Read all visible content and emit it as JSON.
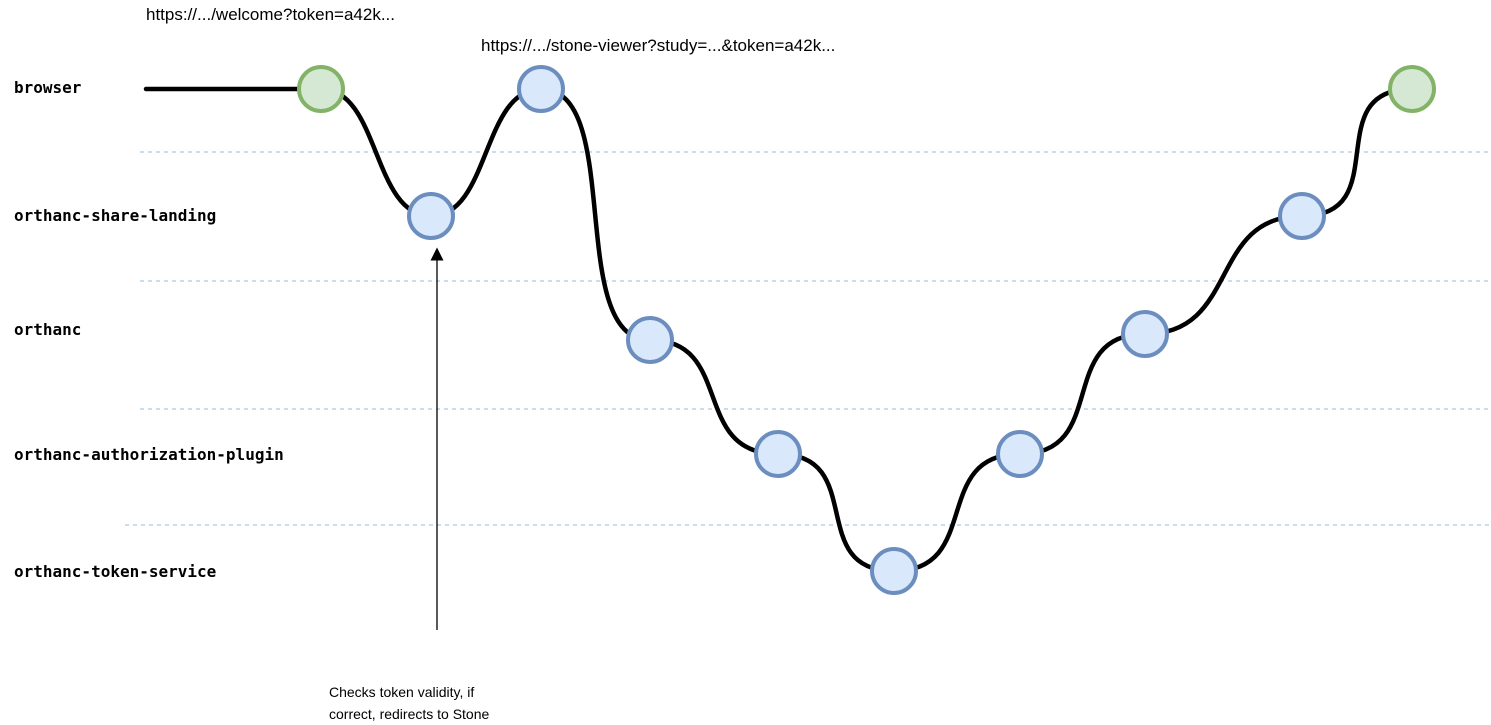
{
  "lanes": [
    {
      "label": "browser"
    },
    {
      "label": "orthanc-share-landing"
    },
    {
      "label": "orthanc"
    },
    {
      "label": "orthanc-authorization-plugin"
    },
    {
      "label": "orthanc-token-service"
    }
  ],
  "urls": {
    "welcome": "https://.../welcome?token=a42k...",
    "stone_viewer": "https://.../stone-viewer?study=...&token=a42k..."
  },
  "note": {
    "line1": "Checks token validity, if",
    "line2": "correct, redirects to Stone"
  },
  "nodes": [
    {
      "id": "start",
      "lane": "browser",
      "style": "terminal"
    },
    {
      "id": "landing-check",
      "lane": "orthanc-share-landing",
      "style": "step"
    },
    {
      "id": "browser-viewer",
      "lane": "browser",
      "style": "step"
    },
    {
      "id": "orthanc-in",
      "lane": "orthanc",
      "style": "step"
    },
    {
      "id": "auth-in",
      "lane": "orthanc-authorization-plugin",
      "style": "step"
    },
    {
      "id": "token-validate",
      "lane": "orthanc-token-service",
      "style": "step"
    },
    {
      "id": "auth-out",
      "lane": "orthanc-authorization-plugin",
      "style": "step"
    },
    {
      "id": "orthanc-out",
      "lane": "orthanc",
      "style": "step"
    },
    {
      "id": "landing-out",
      "lane": "orthanc-share-landing",
      "style": "step"
    },
    {
      "id": "end",
      "lane": "browser",
      "style": "terminal"
    }
  ],
  "colors": {
    "terminal_fill": "#d5e8d4",
    "terminal_stroke": "#82b366",
    "step_fill": "#dae8fc",
    "step_stroke": "#6c8ebf",
    "flow_line": "#000000",
    "lane_divider": "#a9c8e8"
  }
}
